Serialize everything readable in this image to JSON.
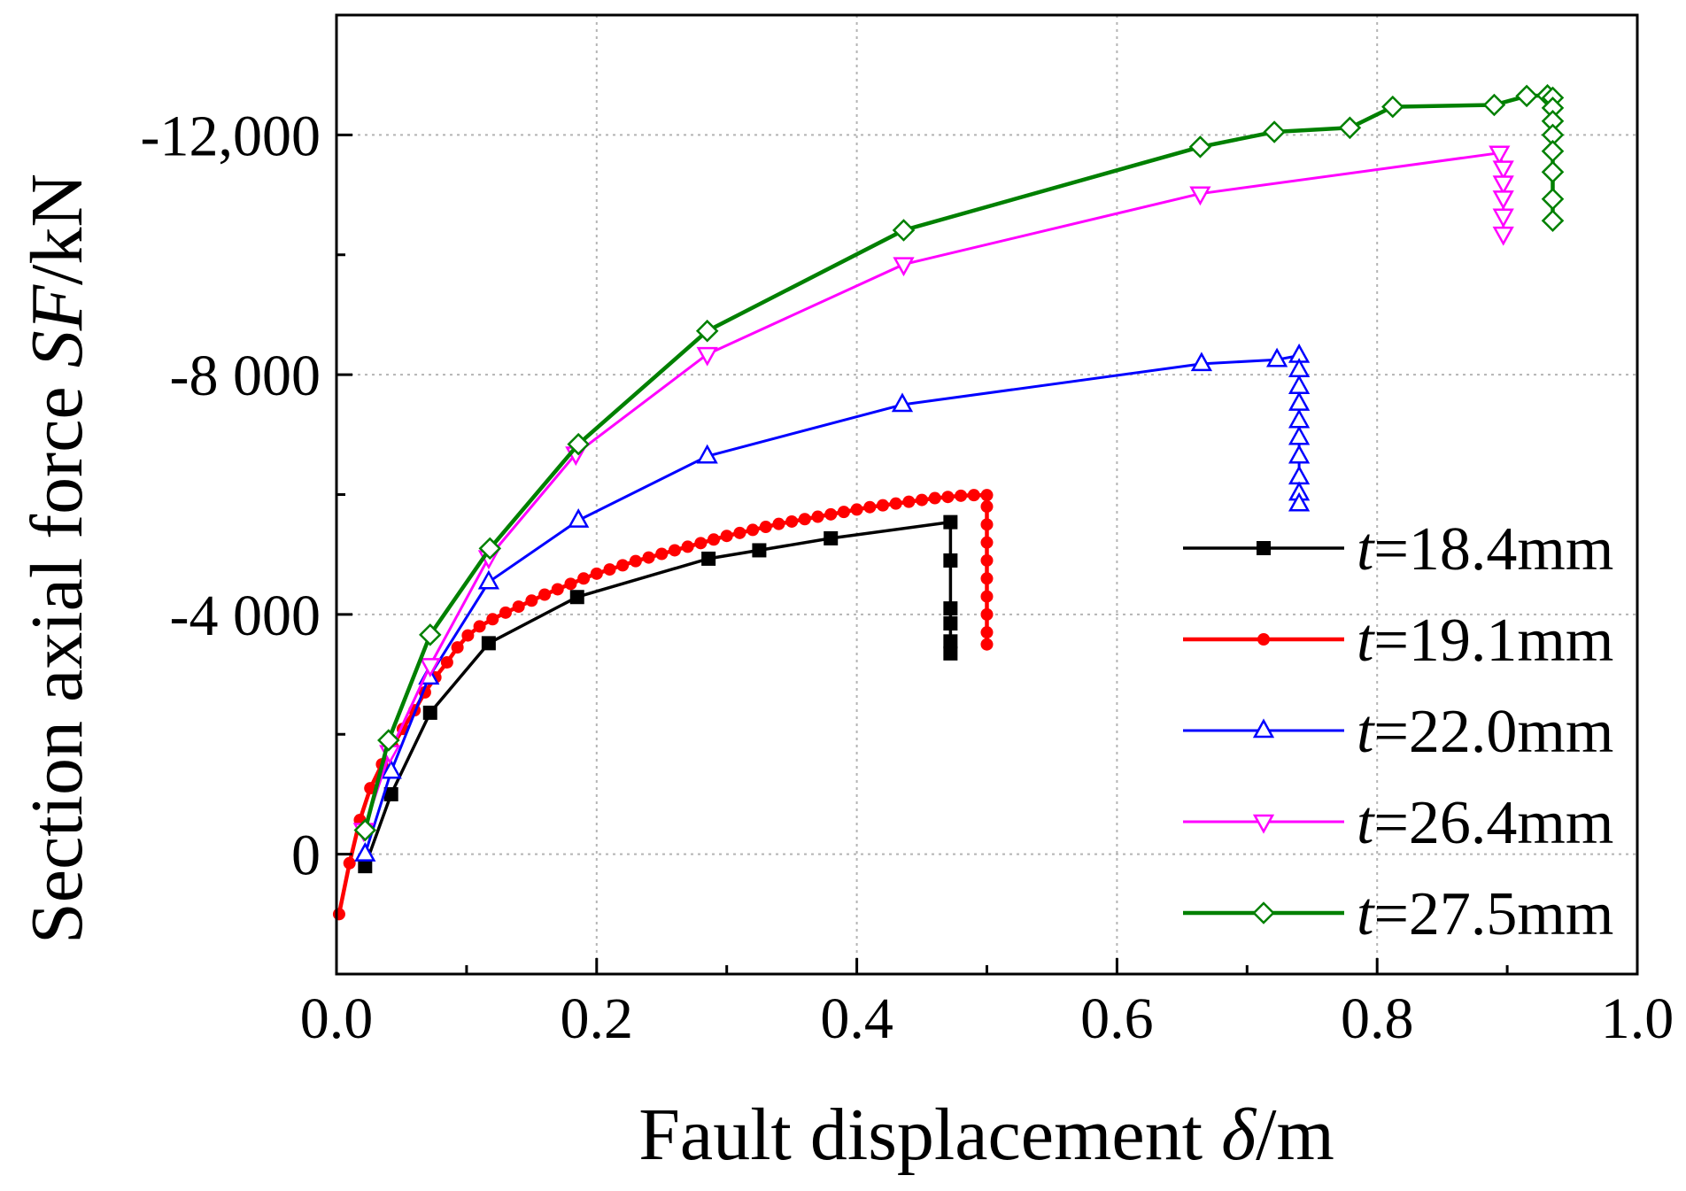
{
  "chart_data": {
    "type": "line",
    "xlabel": "Fault displacement δ/m",
    "ylabel": "Section axial force SF/kN",
    "xlim": [
      0.0,
      1.0
    ],
    "ylim": [
      -14000,
      2000
    ],
    "y_axis_inverted": true,
    "x_ticks": [
      {
        "value": 0.0,
        "label": "0.0"
      },
      {
        "value": 0.2,
        "label": "0.2"
      },
      {
        "value": 0.4,
        "label": "0.4"
      },
      {
        "value": 0.6,
        "label": "0.6"
      },
      {
        "value": 0.8,
        "label": "0.8"
      },
      {
        "value": 1.0,
        "label": "1.0"
      }
    ],
    "y_ticks": [
      {
        "value": -12000,
        "label": "-12,000"
      },
      {
        "value": -8000,
        "label": "-8 000"
      },
      {
        "value": -4000,
        "label": "-4 000"
      },
      {
        "value": 0,
        "label": "0"
      }
    ],
    "grid": true,
    "legend_position": "bottom-right",
    "series": [
      {
        "name": "t=18.4mm",
        "color": "#000000",
        "marker": "filled-square",
        "points": [
          [
            0.022,
            200
          ],
          [
            0.042,
            -1000
          ],
          [
            0.072,
            -2360
          ],
          [
            0.117,
            -3520
          ],
          [
            0.185,
            -4290
          ],
          [
            0.286,
            -4930
          ],
          [
            0.325,
            -5070
          ],
          [
            0.38,
            -5270
          ],
          [
            0.472,
            -5540
          ],
          [
            0.472,
            -4900
          ],
          [
            0.472,
            -4100
          ],
          [
            0.472,
            -3850
          ],
          [
            0.472,
            -3550
          ],
          [
            0.472,
            -3350
          ]
        ]
      },
      {
        "name": "t=19.1mm",
        "color": "#ff0000",
        "marker": "filled-circle",
        "points": [
          [
            0.002,
            1000
          ],
          [
            0.01,
            150
          ],
          [
            0.018,
            -570
          ],
          [
            0.026,
            -1100
          ],
          [
            0.035,
            -1500
          ],
          [
            0.043,
            -1800
          ],
          [
            0.051,
            -2090
          ],
          [
            0.06,
            -2400
          ],
          [
            0.068,
            -2700
          ],
          [
            0.076,
            -2950
          ],
          [
            0.085,
            -3200
          ],
          [
            0.093,
            -3450
          ],
          [
            0.101,
            -3650
          ],
          [
            0.11,
            -3800
          ],
          [
            0.12,
            -3920
          ],
          [
            0.13,
            -4030
          ],
          [
            0.14,
            -4130
          ],
          [
            0.15,
            -4230
          ],
          [
            0.16,
            -4330
          ],
          [
            0.17,
            -4420
          ],
          [
            0.18,
            -4510
          ],
          [
            0.19,
            -4600
          ],
          [
            0.2,
            -4680
          ],
          [
            0.21,
            -4750
          ],
          [
            0.22,
            -4820
          ],
          [
            0.23,
            -4890
          ],
          [
            0.24,
            -4950
          ],
          [
            0.25,
            -5010
          ],
          [
            0.26,
            -5070
          ],
          [
            0.27,
            -5130
          ],
          [
            0.28,
            -5190
          ],
          [
            0.29,
            -5250
          ],
          [
            0.3,
            -5310
          ],
          [
            0.31,
            -5360
          ],
          [
            0.32,
            -5410
          ],
          [
            0.33,
            -5460
          ],
          [
            0.34,
            -5510
          ],
          [
            0.35,
            -5550
          ],
          [
            0.36,
            -5590
          ],
          [
            0.37,
            -5630
          ],
          [
            0.38,
            -5670
          ],
          [
            0.39,
            -5710
          ],
          [
            0.4,
            -5750
          ],
          [
            0.41,
            -5790
          ],
          [
            0.42,
            -5820
          ],
          [
            0.43,
            -5850
          ],
          [
            0.44,
            -5880
          ],
          [
            0.45,
            -5910
          ],
          [
            0.46,
            -5940
          ],
          [
            0.47,
            -5960
          ],
          [
            0.48,
            -5980
          ],
          [
            0.49,
            -5990
          ],
          [
            0.5,
            -5990
          ],
          [
            0.5,
            -5800
          ],
          [
            0.5,
            -5500
          ],
          [
            0.5,
            -5200
          ],
          [
            0.5,
            -4900
          ],
          [
            0.5,
            -4600
          ],
          [
            0.5,
            -4300
          ],
          [
            0.5,
            -4000
          ],
          [
            0.5,
            -3700
          ],
          [
            0.5,
            -3500
          ]
        ]
      },
      {
        "name": "t=22.0mm",
        "color": "#0000ff",
        "marker": "open-triangle-up",
        "points": [
          [
            0.022,
            0
          ],
          [
            0.042,
            -1380
          ],
          [
            0.071,
            -2950
          ],
          [
            0.117,
            -4540
          ],
          [
            0.186,
            -5570
          ],
          [
            0.285,
            -6640
          ],
          [
            0.435,
            -7500
          ],
          [
            0.665,
            -8180
          ],
          [
            0.723,
            -8250
          ],
          [
            0.74,
            -8320
          ],
          [
            0.74,
            -8080
          ],
          [
            0.74,
            -7800
          ],
          [
            0.74,
            -7520
          ],
          [
            0.74,
            -7230
          ],
          [
            0.74,
            -6950
          ],
          [
            0.74,
            -6640
          ],
          [
            0.74,
            -6290
          ],
          [
            0.74,
            -6020
          ],
          [
            0.74,
            -5840
          ]
        ]
      },
      {
        "name": "t=26.4mm",
        "color": "#ff00ff",
        "marker": "open-triangle-down",
        "points": [
          [
            0.021,
            -400
          ],
          [
            0.041,
            -1700
          ],
          [
            0.072,
            -3150
          ],
          [
            0.117,
            -4950
          ],
          [
            0.184,
            -6680
          ],
          [
            0.285,
            -8340
          ],
          [
            0.436,
            -9840
          ],
          [
            0.664,
            -11020
          ],
          [
            0.894,
            -11700
          ],
          [
            0.897,
            -11450
          ],
          [
            0.897,
            -11200
          ],
          [
            0.897,
            -10950
          ],
          [
            0.897,
            -10650
          ],
          [
            0.897,
            -10350
          ]
        ]
      },
      {
        "name": "t=27.5mm",
        "color": "#008000",
        "marker": "open-diamond",
        "points": [
          [
            0.022,
            -400
          ],
          [
            0.04,
            -1900
          ],
          [
            0.072,
            -3660
          ],
          [
            0.118,
            -5100
          ],
          [
            0.186,
            -6840
          ],
          [
            0.285,
            -8730
          ],
          [
            0.436,
            -10410
          ],
          [
            0.664,
            -11800
          ],
          [
            0.721,
            -12050
          ],
          [
            0.779,
            -12120
          ],
          [
            0.812,
            -12470
          ],
          [
            0.89,
            -12500
          ],
          [
            0.915,
            -12650
          ],
          [
            0.931,
            -12660
          ],
          [
            0.935,
            -12620
          ],
          [
            0.935,
            -12450
          ],
          [
            0.935,
            -12230
          ],
          [
            0.935,
            -12000
          ],
          [
            0.935,
            -11730
          ],
          [
            0.935,
            -11380
          ],
          [
            0.935,
            -10930
          ],
          [
            0.935,
            -10570
          ]
        ]
      }
    ]
  }
}
